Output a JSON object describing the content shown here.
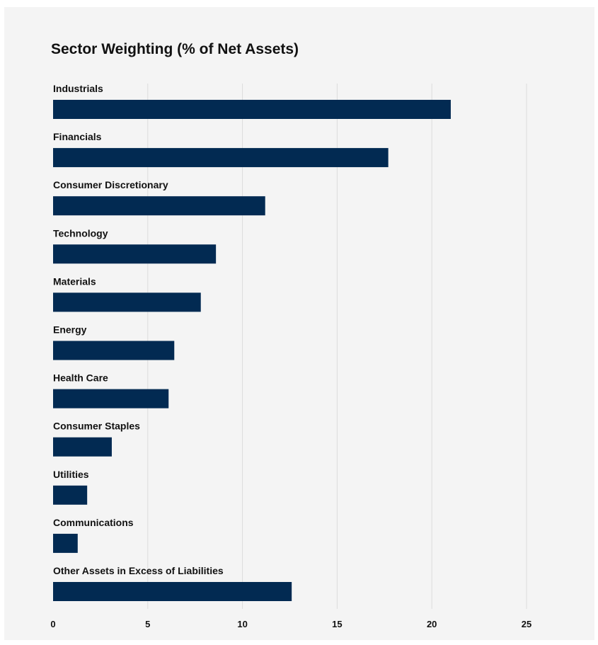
{
  "chart_data": {
    "type": "bar",
    "orientation": "horizontal",
    "title": "Sector Weighting (% of Net Assets)",
    "xlabel": "",
    "ylabel": "",
    "categories": [
      "Industrials",
      "Financials",
      "Consumer Discretionary",
      "Technology",
      "Materials",
      "Energy",
      "Health Care",
      "Consumer Staples",
      "Utilities",
      "Communications",
      "Other Assets in Excess of Liabilities"
    ],
    "values": [
      21.0,
      17.7,
      11.2,
      8.6,
      7.8,
      6.4,
      6.1,
      3.1,
      1.8,
      1.3,
      12.6
    ],
    "xlim": [
      0,
      25
    ],
    "xticks": [
      "0",
      "5",
      "10",
      "15",
      "20",
      "25"
    ],
    "grid": true,
    "legend": "none",
    "colors": {
      "bar": "#022a52",
      "background": "#f4f4f4",
      "grid": "#dcdcdc",
      "text": "#111111"
    }
  }
}
